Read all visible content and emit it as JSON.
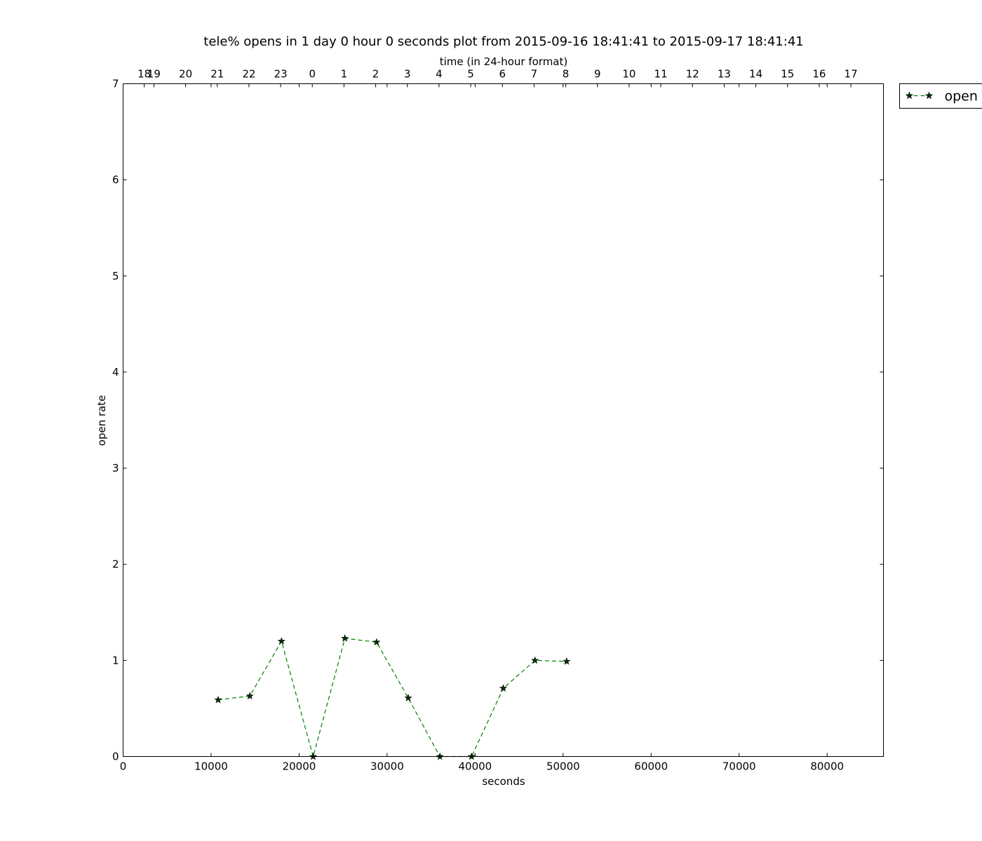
{
  "chart_data": {
    "type": "line",
    "title": "tele% opens in 1 day 0 hour 0 seconds plot from 2015-09-16 18:41:41 to 2015-09-17 18:41:41",
    "xlabel": "seconds",
    "ylabel": "open rate",
    "top_xlabel": "time (in 24-hour format)",
    "xlim": [
      0,
      86400
    ],
    "ylim": [
      0,
      7
    ],
    "x_ticks": [
      0,
      10000,
      20000,
      30000,
      40000,
      50000,
      60000,
      70000,
      80000
    ],
    "y_ticks": [
      0,
      1,
      2,
      3,
      4,
      5,
      6,
      7
    ],
    "top_ticks": [
      {
        "x": 2400,
        "label": "18"
      },
      {
        "x": 3500,
        "label": "19"
      },
      {
        "x": 7100,
        "label": "20"
      },
      {
        "x": 10700,
        "label": "21"
      },
      {
        "x": 14300,
        "label": "22"
      },
      {
        "x": 17900,
        "label": "23"
      },
      {
        "x": 21500,
        "label": "0"
      },
      {
        "x": 25100,
        "label": "1"
      },
      {
        "x": 28700,
        "label": "2"
      },
      {
        "x": 32300,
        "label": "3"
      },
      {
        "x": 35900,
        "label": "4"
      },
      {
        "x": 39500,
        "label": "5"
      },
      {
        "x": 43100,
        "label": "6"
      },
      {
        "x": 46700,
        "label": "7"
      },
      {
        "x": 50300,
        "label": "8"
      },
      {
        "x": 53900,
        "label": "9"
      },
      {
        "x": 57500,
        "label": "10"
      },
      {
        "x": 61100,
        "label": "11"
      },
      {
        "x": 64700,
        "label": "12"
      },
      {
        "x": 68300,
        "label": "13"
      },
      {
        "x": 71900,
        "label": "14"
      },
      {
        "x": 75500,
        "label": "15"
      },
      {
        "x": 79100,
        "label": "16"
      },
      {
        "x": 82700,
        "label": "17"
      }
    ],
    "series": [
      {
        "name": "open",
        "color": "#007f00",
        "marker": "star",
        "linestyle": "dashed",
        "x": [
          10800,
          14400,
          18000,
          21600,
          25200,
          28800,
          32400,
          36000,
          39600,
          43200,
          46800,
          50400
        ],
        "y": [
          0.59,
          0.63,
          1.2,
          0.0,
          1.23,
          1.19,
          0.61,
          0.0,
          0.0,
          0.71,
          1.0,
          0.99
        ]
      }
    ],
    "legend": "upper-right-outside",
    "grid": false
  }
}
